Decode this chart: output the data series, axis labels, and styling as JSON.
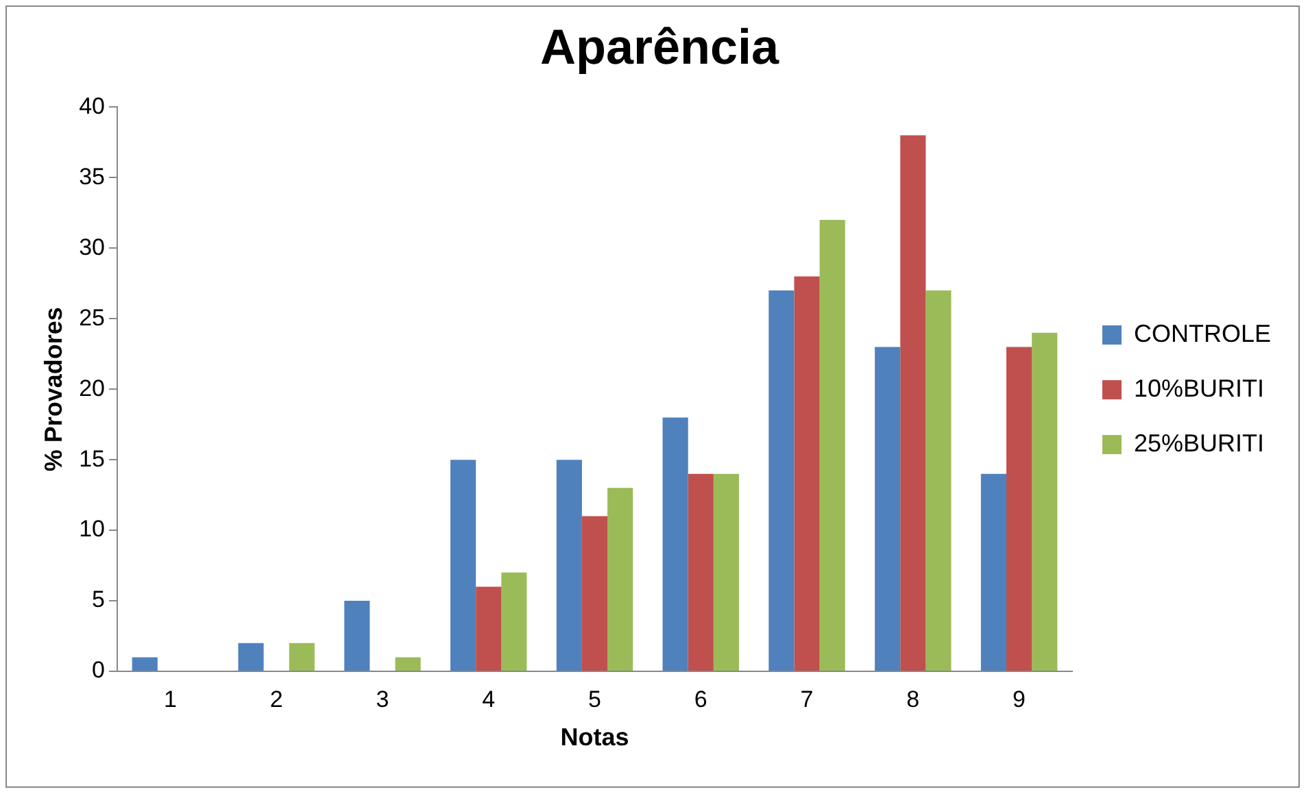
{
  "chart_data": {
    "type": "bar",
    "title": "Aparência",
    "xlabel": "Notas",
    "ylabel": "% Provadores",
    "categories": [
      "1",
      "2",
      "3",
      "4",
      "5",
      "6",
      "7",
      "8",
      "9"
    ],
    "series": [
      {
        "name": "CONTROLE",
        "color": "#4f81bd",
        "values": [
          1,
          2,
          5,
          15,
          15,
          18,
          27,
          23,
          14
        ]
      },
      {
        "name": "10%BURITI",
        "color": "#c0504d",
        "values": [
          0,
          0,
          0,
          6,
          11,
          14,
          28,
          38,
          23
        ]
      },
      {
        "name": "25%BURITI",
        "color": "#9bbb59",
        "values": [
          0,
          2,
          1,
          7,
          13,
          14,
          32,
          27,
          24
        ]
      }
    ],
    "ylim": [
      0,
      40
    ],
    "yticks": [
      0,
      5,
      10,
      15,
      20,
      25,
      30,
      35,
      40
    ],
    "grid": false,
    "legend": "right"
  }
}
